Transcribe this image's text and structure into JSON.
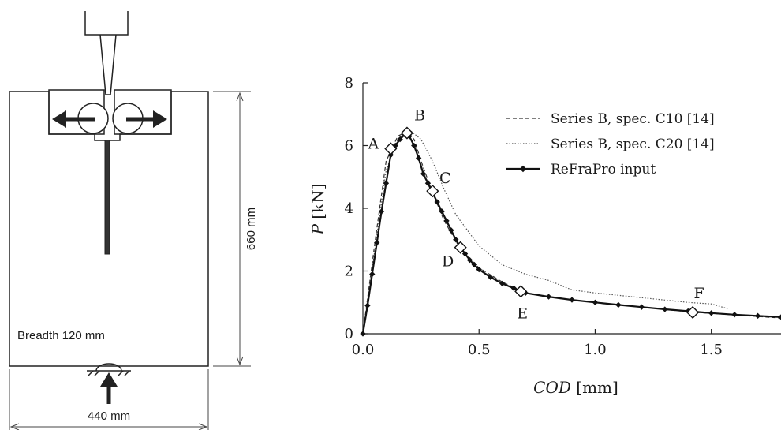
{
  "specimen": {
    "breadth_label": "Breadth 120 mm",
    "height_label": "660 mm",
    "width_label": "440 mm"
  },
  "chart_data": {
    "type": "line",
    "xlabel": "COD [mm]",
    "ylabel": "P [kN]",
    "xlim": [
      0,
      1.8
    ],
    "ylim": [
      0,
      8
    ],
    "x_ticks": [
      "0.0",
      "0.5",
      "1.0",
      "1.5"
    ],
    "y_ticks": [
      "0",
      "2",
      "4",
      "6",
      "8"
    ],
    "grid": false,
    "legend_position": "top-right",
    "legend": [
      {
        "label": "Series B, spec. C10 [14]",
        "style": "dashed"
      },
      {
        "label": "Series B, spec. C20 [14]",
        "style": "dotted"
      },
      {
        "label": "ReFraPro input",
        "style": "solid-diamond"
      }
    ],
    "series": [
      {
        "name": "Series B, spec. C10 [14]",
        "style": "dashed",
        "x": [
          0,
          0.05,
          0.1,
          0.15,
          0.19,
          0.22,
          0.26,
          0.3,
          0.35,
          0.42,
          0.5,
          0.6,
          0.7,
          0.85,
          1.0,
          1.2,
          1.4,
          1.6,
          1.8
        ],
        "y": [
          0,
          2.8,
          5.5,
          6.3,
          6.45,
          6.2,
          5.3,
          4.5,
          3.6,
          2.7,
          2.1,
          1.65,
          1.3,
          1.12,
          1.0,
          0.85,
          0.7,
          0.6,
          0.5
        ]
      },
      {
        "name": "Series B, spec. C20 [14]",
        "style": "dotted",
        "x": [
          0,
          0.05,
          0.1,
          0.15,
          0.2,
          0.25,
          0.3,
          0.35,
          0.4,
          0.5,
          0.6,
          0.7,
          0.8,
          0.9,
          1.0,
          1.2,
          1.4,
          1.5,
          1.57
        ],
        "y": [
          0,
          2.6,
          5.2,
          6.2,
          6.5,
          6.2,
          5.5,
          4.6,
          3.8,
          2.8,
          2.2,
          1.9,
          1.7,
          1.4,
          1.3,
          1.15,
          1.0,
          0.95,
          0.8
        ]
      },
      {
        "name": "ReFraPro input",
        "style": "solid-diamond",
        "x": [
          0,
          0.02,
          0.04,
          0.06,
          0.08,
          0.1,
          0.12,
          0.14,
          0.16,
          0.18,
          0.2,
          0.22,
          0.24,
          0.26,
          0.28,
          0.3,
          0.32,
          0.34,
          0.36,
          0.38,
          0.4,
          0.42,
          0.44,
          0.46,
          0.48,
          0.5,
          0.55,
          0.6,
          0.65,
          0.7,
          0.8,
          0.9,
          1.0,
          1.1,
          1.2,
          1.3,
          1.4,
          1.5,
          1.6,
          1.7,
          1.8
        ],
        "y": [
          0,
          0.9,
          1.9,
          2.9,
          3.9,
          4.8,
          5.7,
          6.0,
          6.2,
          6.35,
          6.3,
          6.0,
          5.6,
          5.1,
          4.8,
          4.5,
          4.2,
          3.9,
          3.6,
          3.3,
          3.0,
          2.75,
          2.55,
          2.35,
          2.2,
          2.05,
          1.8,
          1.6,
          1.45,
          1.3,
          1.18,
          1.08,
          1.0,
          0.92,
          0.85,
          0.78,
          0.72,
          0.66,
          0.61,
          0.57,
          0.53
        ]
      }
    ],
    "points": [
      {
        "label": "A",
        "x": 0.12,
        "y": 5.9
      },
      {
        "label": "B",
        "x": 0.19,
        "y": 6.4
      },
      {
        "label": "C",
        "x": 0.3,
        "y": 4.55
      },
      {
        "label": "D",
        "x": 0.42,
        "y": 2.75
      },
      {
        "label": "E",
        "x": 0.68,
        "y": 1.35
      },
      {
        "label": "F",
        "x": 1.42,
        "y": 0.68
      }
    ]
  }
}
